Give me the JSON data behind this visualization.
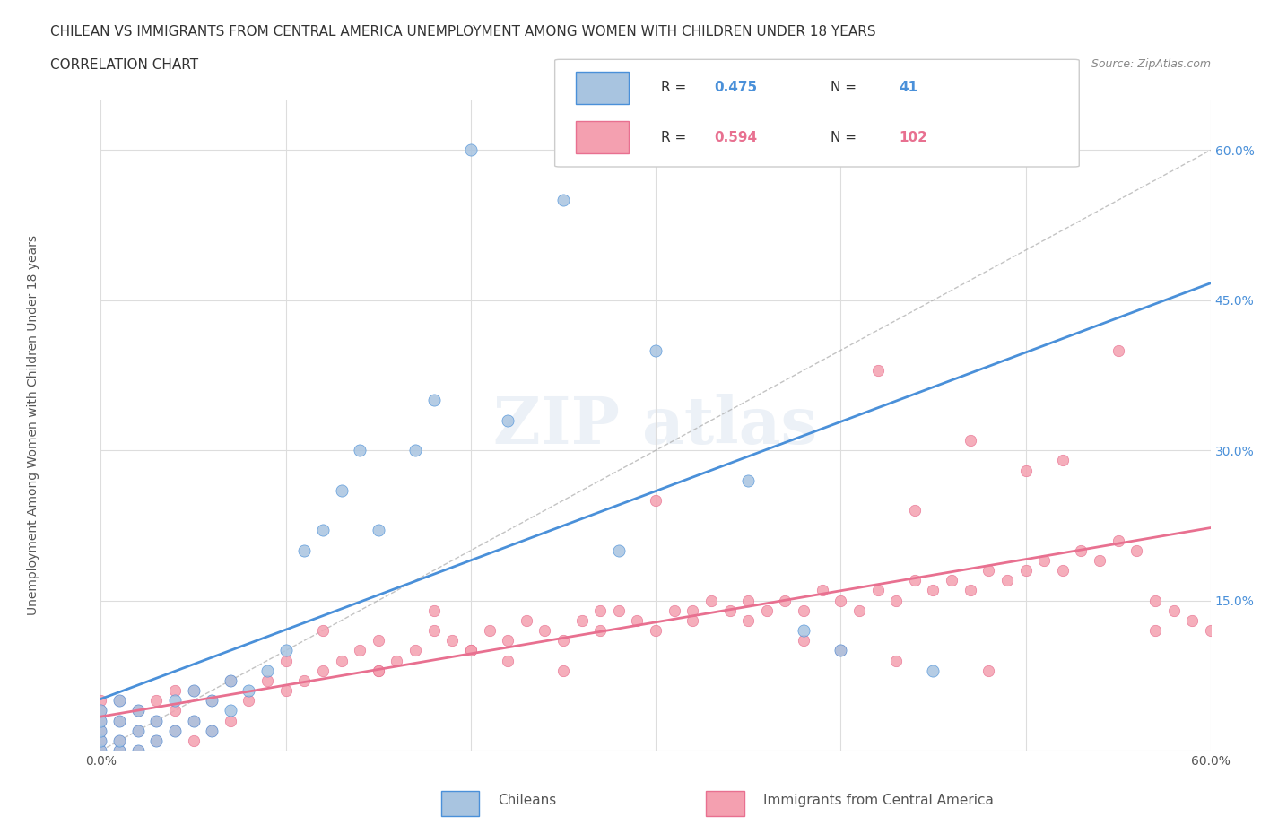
{
  "title_line1": "CHILEAN VS IMMIGRANTS FROM CENTRAL AMERICA UNEMPLOYMENT AMONG WOMEN WITH CHILDREN UNDER 18 YEARS",
  "title_line2": "CORRELATION CHART",
  "source_text": "Source: ZipAtlas.com",
  "xlabel": "",
  "ylabel": "Unemployment Among Women with Children Under 18 years",
  "xlim": [
    0.0,
    0.6
  ],
  "ylim": [
    0.0,
    0.65
  ],
  "x_ticks": [
    0.0,
    0.1,
    0.2,
    0.3,
    0.4,
    0.5,
    0.6
  ],
  "x_tick_labels": [
    "0.0%",
    "",
    "",
    "",
    "",
    "",
    "60.0%"
  ],
  "y_tick_labels": [
    "",
    "15.0%",
    "30.0%",
    "45.0%",
    "60.0%"
  ],
  "y_ticks": [
    0.0,
    0.15,
    0.3,
    0.45,
    0.6
  ],
  "grid_color": "#dddddd",
  "watermark": "ZIPatlas",
  "chilean_color": "#a8c4e0",
  "immigrant_color": "#f4a0b0",
  "chilean_line_color": "#4a90d9",
  "immigrant_line_color": "#e87090",
  "diagonal_color": "#aaaaaa",
  "R_chilean": 0.475,
  "N_chilean": 41,
  "R_immigrant": 0.594,
  "N_immigrant": 102,
  "chilean_scatter_x": [
    0.0,
    0.0,
    0.0,
    0.0,
    0.0,
    0.01,
    0.01,
    0.01,
    0.01,
    0.02,
    0.02,
    0.02,
    0.03,
    0.03,
    0.04,
    0.04,
    0.05,
    0.05,
    0.06,
    0.06,
    0.07,
    0.07,
    0.08,
    0.09,
    0.1,
    0.11,
    0.12,
    0.13,
    0.14,
    0.15,
    0.17,
    0.18,
    0.2,
    0.22,
    0.25,
    0.28,
    0.3,
    0.35,
    0.38,
    0.4,
    0.45
  ],
  "chilean_scatter_y": [
    0.0,
    0.01,
    0.02,
    0.03,
    0.04,
    0.0,
    0.01,
    0.03,
    0.05,
    0.0,
    0.02,
    0.04,
    0.01,
    0.03,
    0.02,
    0.05,
    0.03,
    0.06,
    0.02,
    0.05,
    0.04,
    0.07,
    0.06,
    0.08,
    0.1,
    0.2,
    0.22,
    0.26,
    0.3,
    0.22,
    0.3,
    0.35,
    0.6,
    0.33,
    0.55,
    0.2,
    0.4,
    0.27,
    0.12,
    0.1,
    0.08
  ],
  "immigrant_scatter_x": [
    0.0,
    0.0,
    0.0,
    0.0,
    0.0,
    0.0,
    0.01,
    0.01,
    0.01,
    0.01,
    0.02,
    0.02,
    0.02,
    0.03,
    0.03,
    0.03,
    0.04,
    0.04,
    0.04,
    0.05,
    0.05,
    0.05,
    0.06,
    0.06,
    0.07,
    0.07,
    0.08,
    0.09,
    0.1,
    0.1,
    0.11,
    0.12,
    0.13,
    0.14,
    0.15,
    0.15,
    0.16,
    0.17,
    0.18,
    0.19,
    0.2,
    0.21,
    0.22,
    0.23,
    0.24,
    0.25,
    0.26,
    0.27,
    0.28,
    0.29,
    0.3,
    0.31,
    0.32,
    0.33,
    0.34,
    0.35,
    0.36,
    0.37,
    0.38,
    0.39,
    0.4,
    0.41,
    0.42,
    0.43,
    0.44,
    0.45,
    0.46,
    0.47,
    0.48,
    0.49,
    0.5,
    0.51,
    0.52,
    0.53,
    0.54,
    0.55,
    0.56,
    0.57,
    0.58,
    0.59,
    0.6,
    0.42,
    0.44,
    0.47,
    0.5,
    0.52,
    0.55,
    0.57,
    0.48,
    0.43,
    0.4,
    0.38,
    0.35,
    0.32,
    0.3,
    0.27,
    0.25,
    0.22,
    0.2,
    0.18,
    0.15,
    0.12
  ],
  "immigrant_scatter_y": [
    0.0,
    0.01,
    0.02,
    0.03,
    0.04,
    0.05,
    0.0,
    0.01,
    0.03,
    0.05,
    0.0,
    0.02,
    0.04,
    0.01,
    0.03,
    0.05,
    0.02,
    0.04,
    0.06,
    0.01,
    0.03,
    0.06,
    0.02,
    0.05,
    0.03,
    0.07,
    0.05,
    0.07,
    0.06,
    0.09,
    0.07,
    0.08,
    0.09,
    0.1,
    0.08,
    0.11,
    0.09,
    0.1,
    0.12,
    0.11,
    0.1,
    0.12,
    0.11,
    0.13,
    0.12,
    0.11,
    0.13,
    0.12,
    0.14,
    0.13,
    0.12,
    0.14,
    0.13,
    0.15,
    0.14,
    0.13,
    0.14,
    0.15,
    0.14,
    0.16,
    0.15,
    0.14,
    0.16,
    0.15,
    0.17,
    0.16,
    0.17,
    0.16,
    0.18,
    0.17,
    0.18,
    0.19,
    0.18,
    0.2,
    0.19,
    0.21,
    0.2,
    0.15,
    0.14,
    0.13,
    0.12,
    0.38,
    0.24,
    0.31,
    0.28,
    0.29,
    0.4,
    0.12,
    0.08,
    0.09,
    0.1,
    0.11,
    0.15,
    0.14,
    0.25,
    0.14,
    0.08,
    0.09,
    0.1,
    0.14,
    0.08,
    0.12
  ]
}
